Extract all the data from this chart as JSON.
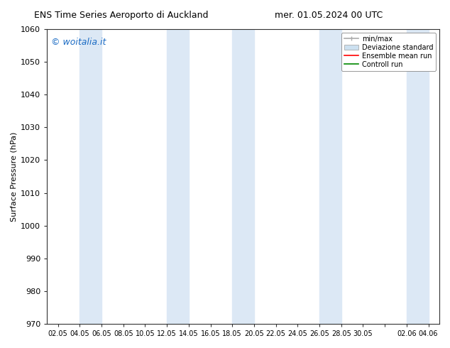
{
  "title_left": "ENS Time Series Aeroporto di Auckland",
  "title_right": "mer. 01.05.2024 00 UTC",
  "ylabel": "Surface Pressure (hPa)",
  "ylim": [
    970,
    1060
  ],
  "yticks": [
    970,
    980,
    990,
    1000,
    1010,
    1020,
    1030,
    1040,
    1050,
    1060
  ],
  "xtick_labels": [
    "02.05",
    "04.05",
    "06.05",
    "08.05",
    "10.05",
    "12.05",
    "14.05",
    "16.05",
    "18.05",
    "20.05",
    "22.05",
    "24.05",
    "26.05",
    "28.05",
    "30.05",
    "",
    "02.06",
    "04.06"
  ],
  "background_color": "#ffffff",
  "plot_bg_color": "#ffffff",
  "shaded_band_color": "#dce8f5",
  "watermark_text": "© woitalia.it",
  "watermark_color": "#1a6bc4",
  "legend_labels": [
    "min/max",
    "Deviazione standard",
    "Ensemble mean run",
    "Controll run"
  ],
  "legend_minmax_color": "#aaaaaa",
  "legend_dev_color": "#cce0f0",
  "legend_ens_color": "#ff0000",
  "legend_ctrl_color": "#008800",
  "font_family": "DejaVu Sans"
}
